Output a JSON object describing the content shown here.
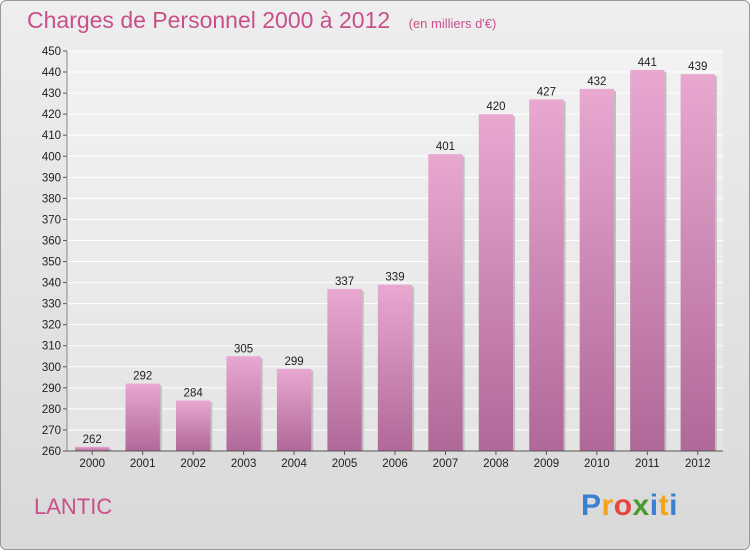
{
  "header": {
    "title": "Charges de Personnel 2000 à 2012",
    "unit": "(en milliers d'€)"
  },
  "footer": {
    "commune": "LANTIC",
    "logo_letters": [
      "P",
      "r",
      "o",
      "x",
      "i",
      "t",
      "i"
    ],
    "logo_colors": [
      "#3a7fd0",
      "#f4a21c",
      "#e8453c",
      "#4a9a2c",
      "#3a7fd0",
      "#f4a21c",
      "#3a7fd0"
    ]
  },
  "chart_data": {
    "type": "bar",
    "title": "Charges de Personnel 2000 à 2012",
    "subtitle": "(en milliers d'€)",
    "categories": [
      "2000",
      "2001",
      "2002",
      "2003",
      "2004",
      "2005",
      "2006",
      "2007",
      "2008",
      "2009",
      "2010",
      "2011",
      "2012"
    ],
    "values": [
      262,
      292,
      284,
      305,
      299,
      337,
      339,
      401,
      420,
      427,
      432,
      441,
      439
    ],
    "ylim": [
      260,
      450
    ],
    "ytick_step": 10,
    "grid": true,
    "bar_color_top": "#e8a8d0",
    "bar_color_bottom": "#b06898",
    "xlabel": "",
    "ylabel": ""
  }
}
